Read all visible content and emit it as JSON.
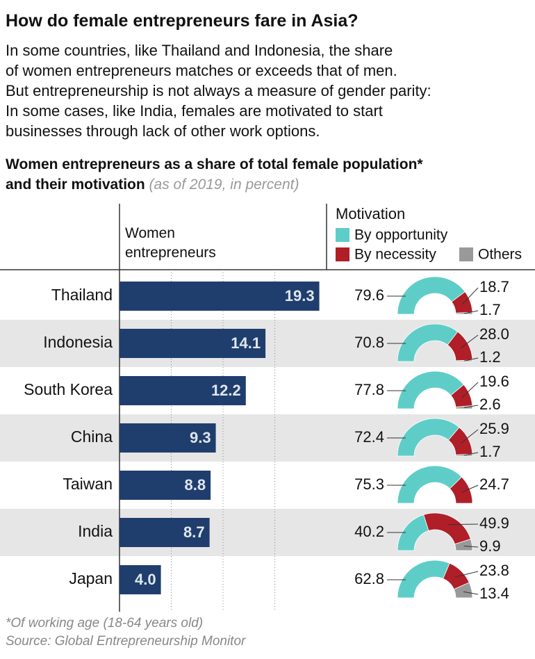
{
  "title": "How do female entrepreneurs fare in Asia?",
  "subtitle": [
    "In some countries, like Thailand and Indonesia, the share",
    "of women entrepreneurs matches or exceeds that of men.",
    "But entrepreneurship is not always a measure of gender parity:",
    "In some cases, like India, females are motivated to start",
    "businesses through lack of other work options."
  ],
  "chart_title": [
    "Women entrepreneurs as a share of total female population*",
    "and their motivation"
  ],
  "chart_note": "(as of 2019, in percent)",
  "chart_data": [
    {
      "type": "bar",
      "x_label": "Women entrepreneurs",
      "categories": [
        "Thailand",
        "Indonesia",
        "South Korea",
        "China",
        "Taiwan",
        "India",
        "Japan"
      ],
      "values": [
        19.3,
        14.1,
        12.2,
        9.3,
        8.8,
        8.7,
        4
      ],
      "value_labels": [
        "19.3",
        "14.1",
        "12.2",
        "9.3",
        "8.8",
        "8.7",
        "4.0"
      ],
      "color": "#1f3e6d",
      "xlim": [
        0,
        20
      ],
      "xticks": [
        5,
        10,
        15
      ],
      "grid": true
    },
    {
      "type": "semi-donut",
      "title": "Motivation",
      "series": [
        {
          "name": "By opportunity",
          "color": "#5ecdc8",
          "values": [
            79.6,
            70.8,
            77.8,
            72.4,
            75.3,
            40.2,
            62.8
          ]
        },
        {
          "name": "By necessity",
          "color": "#b01e28",
          "values": [
            18.7,
            28,
            19.6,
            25.9,
            24.7,
            49.9,
            23.8
          ],
          "value_labels": [
            "18.7",
            "28.0",
            "19.6",
            "25.9",
            "24.7",
            "49.9",
            "23.8"
          ]
        },
        {
          "name": "Others",
          "color": "#999999",
          "values": [
            1.7,
            1.2,
            2.6,
            1.7,
            null,
            9.9,
            13.4
          ]
        }
      ]
    }
  ],
  "notes": [
    "*Of working age (18-64 years old)",
    "Source: Global Entrepreneurship Monitor"
  ]
}
